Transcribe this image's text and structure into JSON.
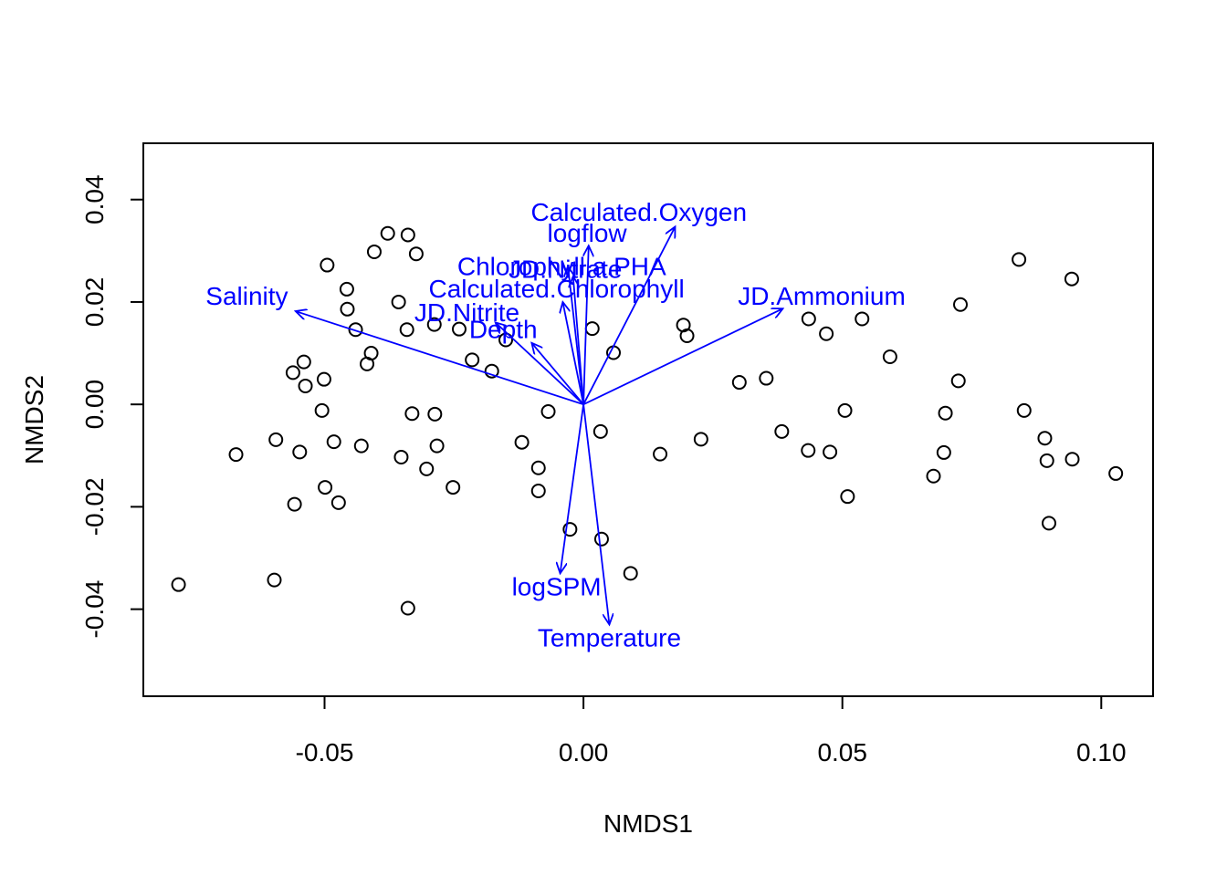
{
  "chart_data": {
    "type": "scatter",
    "title": "",
    "xlabel": "NMDS1",
    "ylabel": "NMDS2",
    "xlim": [
      -0.085,
      0.11
    ],
    "ylim": [
      -0.057,
      0.051
    ],
    "x_ticks": [
      -0.05,
      0.0,
      0.05,
      0.1
    ],
    "x_tick_labels": [
      "-0.05",
      "0.00",
      "0.05",
      "0.10"
    ],
    "y_ticks": [
      -0.04,
      -0.02,
      0.0,
      0.02,
      0.04
    ],
    "y_tick_labels": [
      "-0.04",
      "-0.02",
      "0.00",
      "0.02",
      "0.04"
    ],
    "grid": false,
    "point_color": "#000000",
    "vector_color": "#0000ff",
    "points": [
      {
        "x": -0.0782,
        "y": -0.0352
      },
      {
        "x": -0.0671,
        "y": -0.0098
      },
      {
        "x": -0.0597,
        "y": -0.0343
      },
      {
        "x": -0.0594,
        "y": -0.0069
      },
      {
        "x": -0.0561,
        "y": 0.0062
      },
      {
        "x": -0.0558,
        "y": -0.0195
      },
      {
        "x": -0.0548,
        "y": -0.0093
      },
      {
        "x": -0.054,
        "y": 0.0083
      },
      {
        "x": -0.0537,
        "y": 0.0036
      },
      {
        "x": -0.0505,
        "y": -0.0012
      },
      {
        "x": -0.0501,
        "y": 0.0049
      },
      {
        "x": -0.0499,
        "y": -0.0162
      },
      {
        "x": -0.0495,
        "y": 0.0272
      },
      {
        "x": -0.0482,
        "y": -0.0073
      },
      {
        "x": -0.0473,
        "y": -0.0192
      },
      {
        "x": -0.0457,
        "y": 0.0225
      },
      {
        "x": -0.0456,
        "y": 0.0186
      },
      {
        "x": -0.044,
        "y": 0.0146
      },
      {
        "x": -0.0429,
        "y": -0.0081
      },
      {
        "x": -0.0418,
        "y": 0.0079
      },
      {
        "x": -0.041,
        "y": 0.01
      },
      {
        "x": -0.0404,
        "y": 0.0298
      },
      {
        "x": -0.0378,
        "y": 0.0334
      },
      {
        "x": -0.0357,
        "y": 0.02
      },
      {
        "x": -0.0352,
        "y": -0.0103
      },
      {
        "x": -0.0341,
        "y": 0.0146
      },
      {
        "x": -0.0339,
        "y": 0.0331
      },
      {
        "x": -0.0339,
        "y": -0.0398
      },
      {
        "x": -0.0331,
        "y": -0.0018
      },
      {
        "x": -0.0323,
        "y": 0.0294
      },
      {
        "x": -0.0303,
        "y": -0.0126
      },
      {
        "x": -0.0288,
        "y": 0.0156
      },
      {
        "x": -0.0287,
        "y": -0.0019
      },
      {
        "x": -0.0283,
        "y": -0.0081
      },
      {
        "x": -0.0252,
        "y": -0.0162
      },
      {
        "x": -0.024,
        "y": 0.0147
      },
      {
        "x": -0.0215,
        "y": 0.0087
      },
      {
        "x": -0.0177,
        "y": 0.0065
      },
      {
        "x": -0.015,
        "y": 0.0126
      },
      {
        "x": -0.0119,
        "y": -0.0074
      },
      {
        "x": -0.0087,
        "y": -0.0124
      },
      {
        "x": -0.0087,
        "y": -0.0169
      },
      {
        "x": -0.0068,
        "y": -0.0014
      },
      {
        "x": -0.0026,
        "y": -0.0244
      },
      {
        "x": 0.0017,
        "y": 0.0148
      },
      {
        "x": 0.0033,
        "y": -0.0053
      },
      {
        "x": 0.0035,
        "y": -0.0263
      },
      {
        "x": 0.0058,
        "y": 0.0101
      },
      {
        "x": 0.0091,
        "y": -0.033
      },
      {
        "x": 0.0148,
        "y": -0.0097
      },
      {
        "x": 0.0193,
        "y": 0.0155
      },
      {
        "x": 0.02,
        "y": 0.0134
      },
      {
        "x": 0.0227,
        "y": -0.0068
      },
      {
        "x": 0.0301,
        "y": 0.0043
      },
      {
        "x": 0.0353,
        "y": 0.0051
      },
      {
        "x": 0.0383,
        "y": -0.0053
      },
      {
        "x": 0.0434,
        "y": -0.009
      },
      {
        "x": 0.0435,
        "y": 0.0167
      },
      {
        "x": 0.0469,
        "y": 0.0138
      },
      {
        "x": 0.0476,
        "y": -0.0093
      },
      {
        "x": 0.0505,
        "y": -0.0012
      },
      {
        "x": 0.051,
        "y": -0.018
      },
      {
        "x": 0.0538,
        "y": 0.0167
      },
      {
        "x": 0.0592,
        "y": 0.0093
      },
      {
        "x": 0.0676,
        "y": -0.014
      },
      {
        "x": 0.0696,
        "y": -0.0094
      },
      {
        "x": 0.0699,
        "y": -0.0017
      },
      {
        "x": 0.0724,
        "y": 0.0046
      },
      {
        "x": 0.0728,
        "y": 0.0195
      },
      {
        "x": 0.0841,
        "y": 0.0283
      },
      {
        "x": 0.0851,
        "y": -0.0012
      },
      {
        "x": 0.0891,
        "y": -0.0066
      },
      {
        "x": 0.0895,
        "y": -0.011
      },
      {
        "x": 0.0899,
        "y": -0.0232
      },
      {
        "x": 0.0943,
        "y": 0.0245
      },
      {
        "x": 0.0944,
        "y": -0.0107
      },
      {
        "x": 0.1028,
        "y": -0.0135
      }
    ],
    "vectors": [
      {
        "name": "Salinity",
        "x": -0.0556,
        "y": 0.0182,
        "lx": -0.065,
        "ly": 0.0212
      },
      {
        "name": "Calculated.Oxygen",
        "x": 0.0177,
        "y": 0.0347,
        "lx": 0.0107,
        "ly": 0.0376
      },
      {
        "name": "logflow",
        "x": 0.001,
        "y": 0.031,
        "lx": 0.0007,
        "ly": 0.0335
      },
      {
        "name": "Chlorophyll.a.PHA",
        "x": -0.002,
        "y": 0.025,
        "lx": -0.0042,
        "ly": 0.027
      },
      {
        "name": "JD.Nitrate",
        "x": -0.003,
        "y": 0.027,
        "lx": -0.0035,
        "ly": 0.0265
      },
      {
        "name": "Calculated.Chlorophyll",
        "x": -0.004,
        "y": 0.02,
        "lx": -0.0052,
        "ly": 0.0227
      },
      {
        "name": "JD.Ammonium",
        "x": 0.0385,
        "y": 0.0187,
        "lx": 0.046,
        "ly": 0.0212
      },
      {
        "name": "JD.Nitrite",
        "x": -0.017,
        "y": 0.016,
        "lx": -0.0225,
        "ly": 0.018
      },
      {
        "name": "Depth",
        "x": -0.01,
        "y": 0.012,
        "lx": -0.0155,
        "ly": 0.0147
      },
      {
        "name": "logSPM",
        "x": -0.0045,
        "y": -0.033,
        "lx": -0.0052,
        "ly": -0.0355
      },
      {
        "name": "Temperature",
        "x": 0.005,
        "y": -0.043,
        "lx": 0.005,
        "ly": -0.0455
      }
    ]
  }
}
